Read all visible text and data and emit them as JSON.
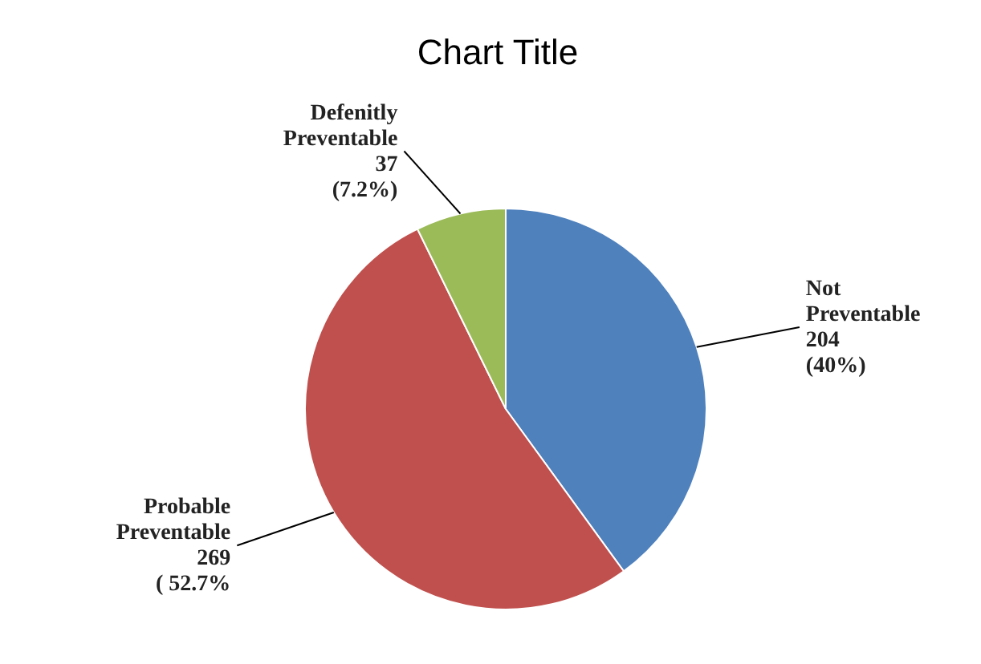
{
  "chart_data": {
    "type": "pie",
    "title": "Chart Title",
    "categories": [
      "Not Preventable",
      "Probable Preventable",
      "Defenitly Preventable"
    ],
    "values": [
      204,
      269,
      37
    ],
    "value_labels": [
      "204 (40%)",
      "269 ( 52.7%",
      "37 (7.2%)"
    ],
    "colors": [
      "#4f81bd",
      "#c0504d",
      "#9bbb59"
    ],
    "legend": false
  }
}
